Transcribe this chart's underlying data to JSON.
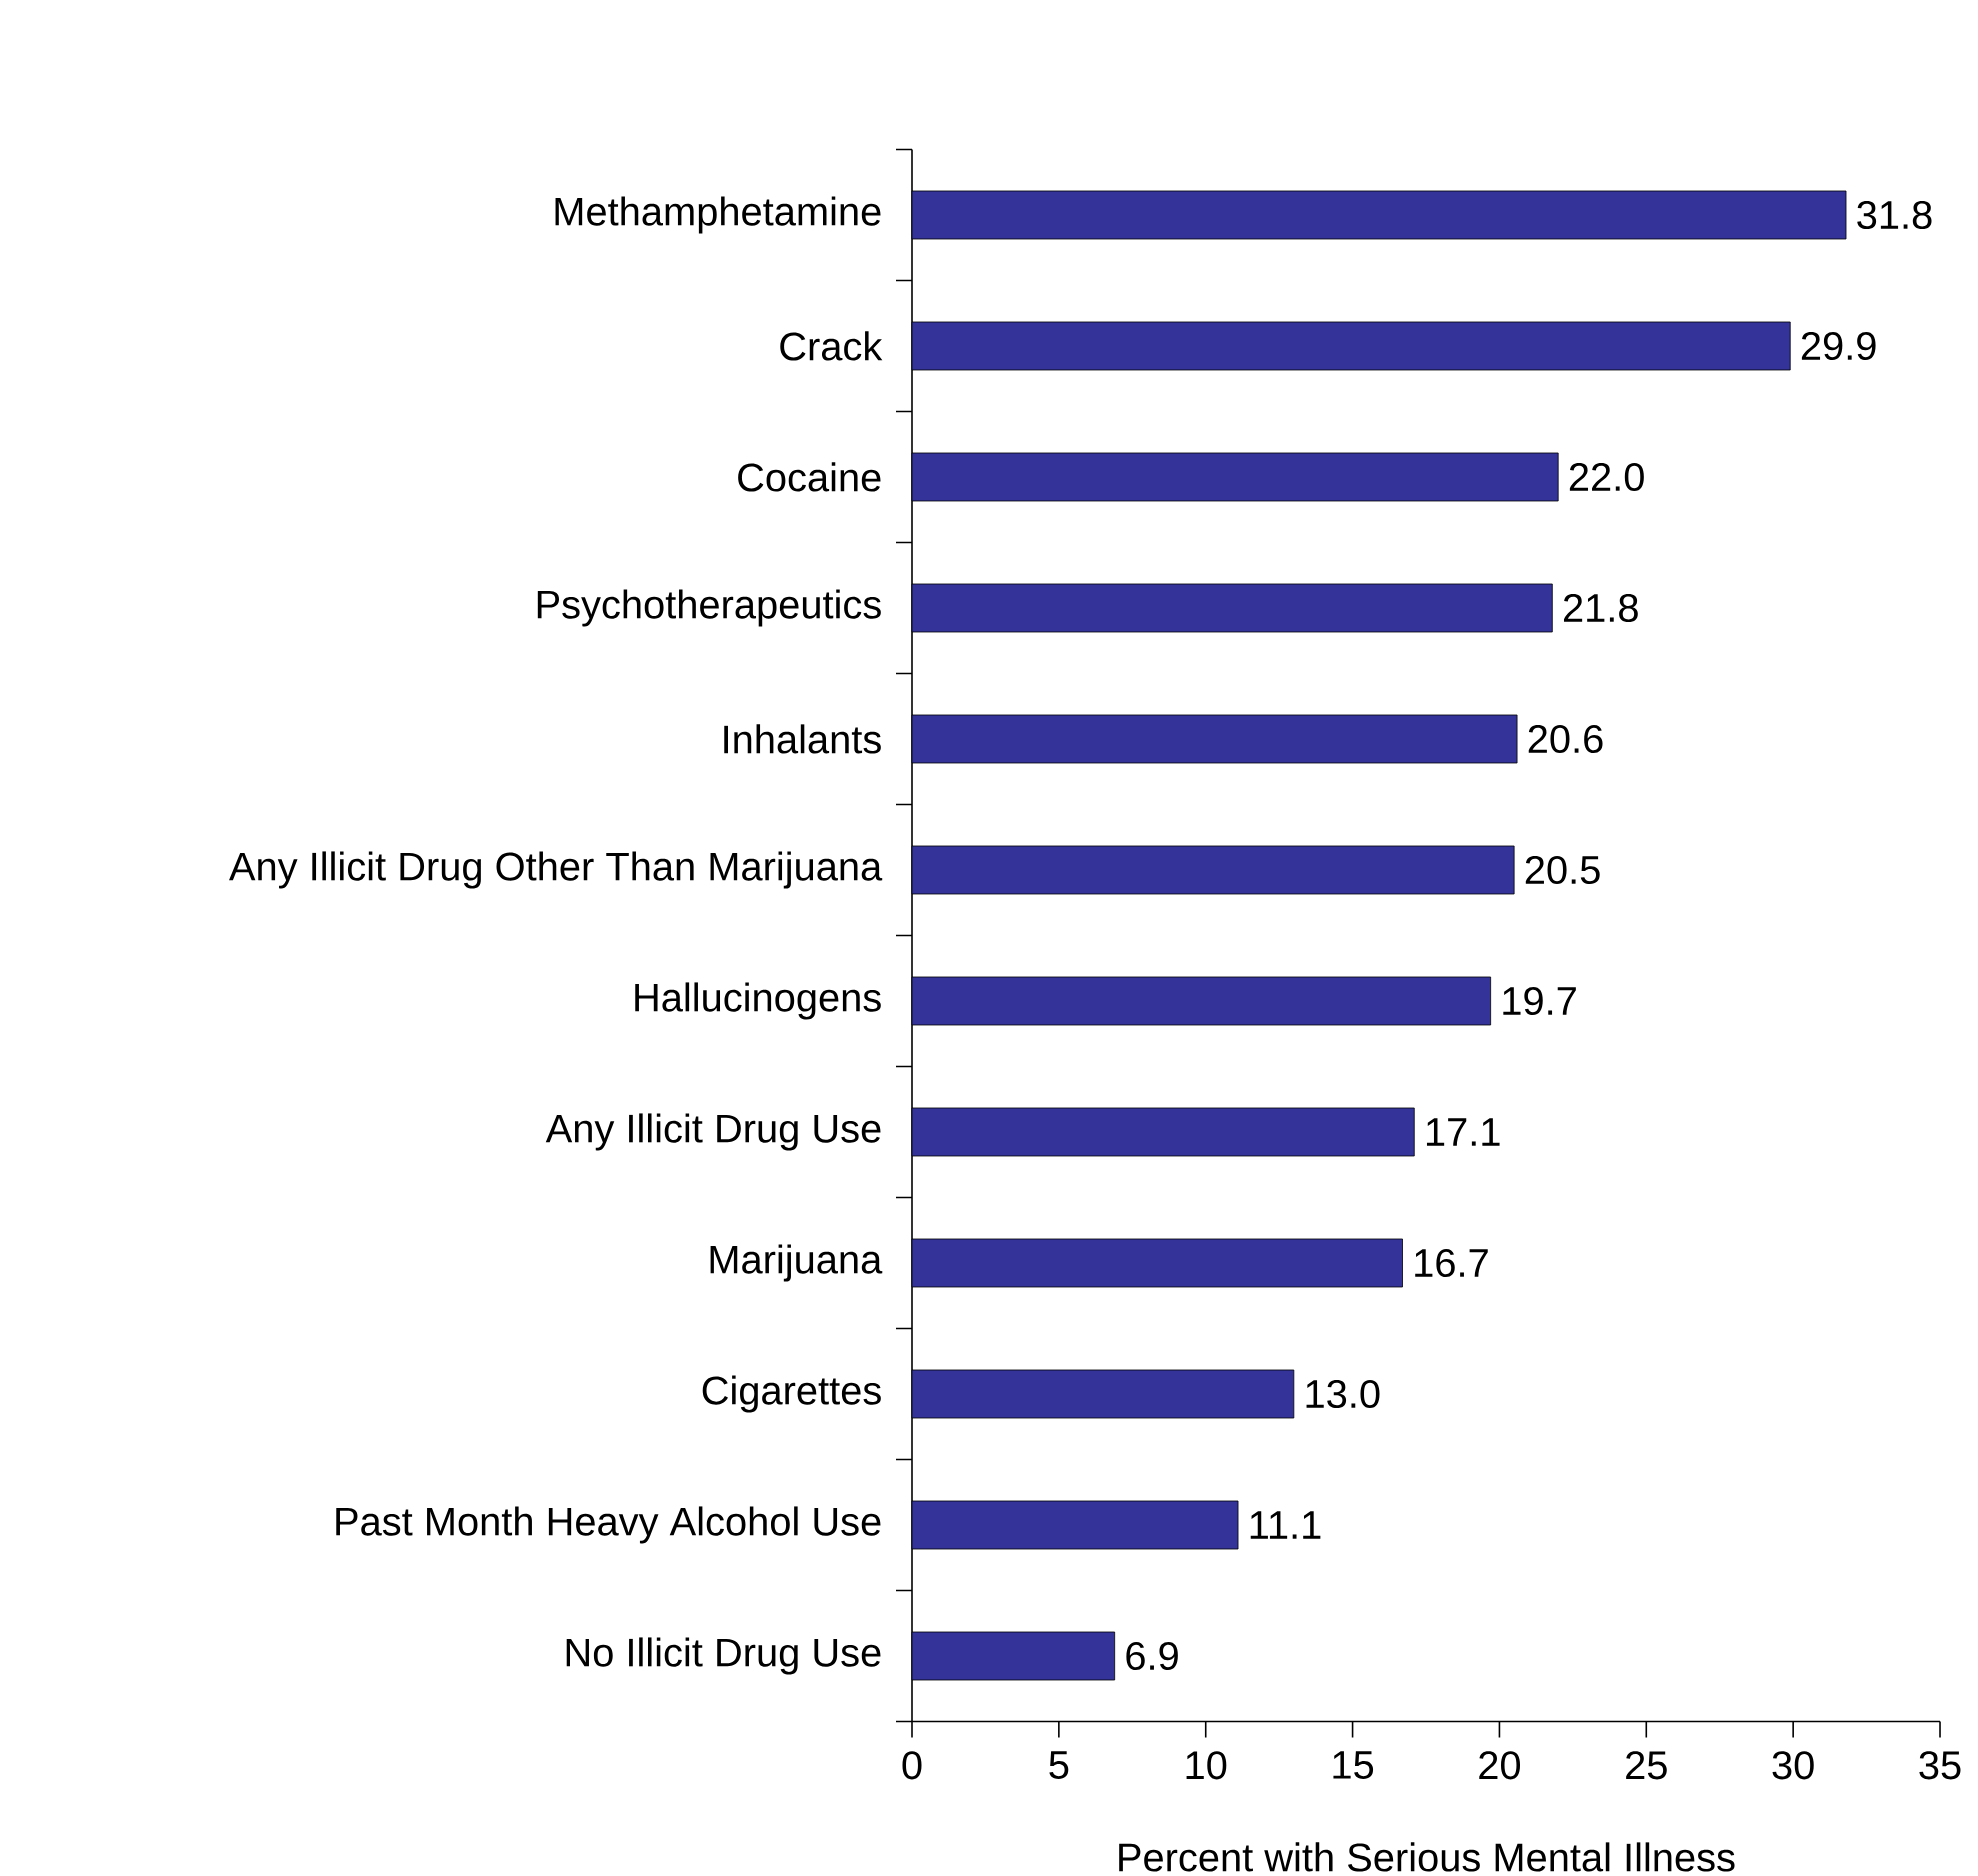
{
  "chart_data": {
    "type": "bar",
    "orientation": "horizontal",
    "xlabel": "Percent with Serious Mental Illness",
    "categories": [
      "Methamphetamine",
      "Crack",
      "Cocaine",
      "Psychotherapeutics",
      "Inhalants",
      "Any Illicit Drug Other Than Marijuana",
      "Hallucinogens",
      "Any Illicit Drug Use",
      "Marijuana",
      "Cigarettes",
      "Past Month Heavy Alcohol Use",
      "No Illicit Drug Use"
    ],
    "values": [
      31.8,
      29.9,
      22.0,
      21.8,
      20.6,
      20.5,
      19.7,
      17.1,
      16.7,
      13.0,
      11.1,
      6.9
    ],
    "value_labels": [
      "31.8",
      "29.9",
      "22.0",
      "21.8",
      "20.6",
      "20.5",
      "19.7",
      "17.1",
      "16.7",
      "13.0",
      "11.1",
      "6.9"
    ],
    "color": "#333399",
    "grid": false,
    "xlim": [
      0,
      35
    ],
    "xticks": [
      0,
      5,
      10,
      15,
      20,
      25,
      30,
      35
    ]
  }
}
